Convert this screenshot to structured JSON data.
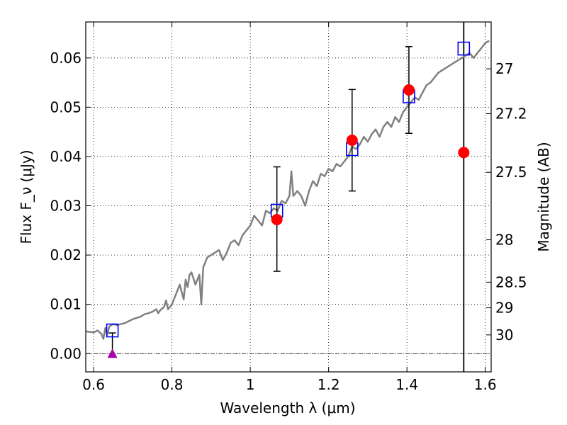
{
  "chart_data": {
    "type": "scatter",
    "xlabel": "Wavelength λ (μm)",
    "ylabel": "Flux F_ν (μJy)",
    "y2label": "Magnitude (AB)",
    "xlim": [
      0.58,
      1.615
    ],
    "ylim": [
      -0.0037,
      0.0673
    ],
    "grid": true,
    "x_ticks": [
      {
        "value": 0.6,
        "label": "0.6"
      },
      {
        "value": 0.8,
        "label": "0.8"
      },
      {
        "value": 1.0,
        "label": "1"
      },
      {
        "value": 1.2,
        "label": "1.2"
      },
      {
        "value": 1.4,
        "label": "1.4"
      },
      {
        "value": 1.6,
        "label": "1.6"
      }
    ],
    "y_ticks": [
      {
        "value": 0.0,
        "label": "0.00"
      },
      {
        "value": 0.01,
        "label": "0.01"
      },
      {
        "value": 0.02,
        "label": "0.02"
      },
      {
        "value": 0.03,
        "label": "0.03"
      },
      {
        "value": 0.04,
        "label": "0.04"
      },
      {
        "value": 0.05,
        "label": "0.05"
      },
      {
        "value": 0.06,
        "label": "0.06"
      }
    ],
    "y2_ticks": [
      {
        "flux": 0.0578,
        "label": "27"
      },
      {
        "flux": 0.0487,
        "label": "27.2"
      },
      {
        "flux": 0.0368,
        "label": "27.5"
      },
      {
        "flux": 0.0231,
        "label": "28"
      },
      {
        "flux": 0.0145,
        "label": "28.5"
      },
      {
        "flux": 0.0093,
        "label": "29"
      },
      {
        "flux": 0.0038,
        "label": "30"
      }
    ],
    "zero_line": 0.0,
    "vertical_line_x": 1.545,
    "model_spectrum": {
      "color": "#808080",
      "x": [
        0.58,
        0.6,
        0.61,
        0.62,
        0.625,
        0.63,
        0.635,
        0.64,
        0.65,
        0.66,
        0.68,
        0.7,
        0.72,
        0.73,
        0.74,
        0.75,
        0.76,
        0.765,
        0.77,
        0.78,
        0.785,
        0.79,
        0.8,
        0.81,
        0.82,
        0.83,
        0.835,
        0.84,
        0.845,
        0.85,
        0.86,
        0.87,
        0.875,
        0.88,
        0.89,
        0.9,
        0.91,
        0.92,
        0.93,
        0.94,
        0.95,
        0.96,
        0.97,
        0.98,
        0.99,
        1.0,
        1.01,
        1.02,
        1.03,
        1.04,
        1.05,
        1.06,
        1.07,
        1.08,
        1.09,
        1.1,
        1.105,
        1.11,
        1.12,
        1.13,
        1.14,
        1.15,
        1.16,
        1.17,
        1.18,
        1.19,
        1.2,
        1.21,
        1.22,
        1.23,
        1.24,
        1.25,
        1.26,
        1.27,
        1.28,
        1.29,
        1.3,
        1.31,
        1.32,
        1.33,
        1.34,
        1.35,
        1.36,
        1.37,
        1.38,
        1.39,
        1.4,
        1.41,
        1.42,
        1.43,
        1.44,
        1.45,
        1.46,
        1.47,
        1.48,
        1.49,
        1.5,
        1.51,
        1.52,
        1.53,
        1.54,
        1.55,
        1.56,
        1.57,
        1.58,
        1.59,
        1.6,
        1.61
      ],
      "y": [
        0.0045,
        0.0043,
        0.0047,
        0.004,
        0.003,
        0.0052,
        0.0038,
        0.0055,
        0.006,
        0.0058,
        0.0062,
        0.007,
        0.0075,
        0.008,
        0.0082,
        0.0085,
        0.009,
        0.0082,
        0.0088,
        0.0095,
        0.0108,
        0.009,
        0.01,
        0.012,
        0.014,
        0.011,
        0.015,
        0.0135,
        0.016,
        0.0165,
        0.014,
        0.016,
        0.01,
        0.0175,
        0.0195,
        0.02,
        0.0205,
        0.021,
        0.019,
        0.0205,
        0.0225,
        0.023,
        0.022,
        0.024,
        0.025,
        0.026,
        0.028,
        0.027,
        0.026,
        0.029,
        0.0285,
        0.0295,
        0.029,
        0.031,
        0.0305,
        0.032,
        0.037,
        0.032,
        0.033,
        0.032,
        0.03,
        0.033,
        0.035,
        0.034,
        0.0365,
        0.036,
        0.0375,
        0.037,
        0.0385,
        0.038,
        0.039,
        0.04,
        0.042,
        0.0415,
        0.0425,
        0.044,
        0.043,
        0.0445,
        0.0455,
        0.044,
        0.046,
        0.047,
        0.046,
        0.048,
        0.047,
        0.049,
        0.05,
        0.051,
        0.052,
        0.0515,
        0.053,
        0.0545,
        0.055,
        0.056,
        0.057,
        0.0575,
        0.058,
        0.0585,
        0.059,
        0.0595,
        0.06,
        0.0605,
        0.061,
        0.06,
        0.061,
        0.062,
        0.063,
        0.0635
      ]
    },
    "series": [
      {
        "marker": "circle",
        "color": "#ff0000",
        "points": [
          {
            "x": 1.068,
            "y": 0.0272,
            "ylow": 0.0167,
            "yhigh": 0.0379
          },
          {
            "x": 1.26,
            "y": 0.0433,
            "ylow": 0.033,
            "yhigh": 0.0536
          },
          {
            "x": 1.405,
            "y": 0.0535,
            "ylow": 0.0447,
            "yhigh": 0.0623
          },
          {
            "x": 1.545,
            "y": 0.0408
          }
        ]
      },
      {
        "marker": "square",
        "color": "#0000ff",
        "points": [
          {
            "x": 0.648,
            "y": 0.0047
          },
          {
            "x": 1.068,
            "y": 0.029
          },
          {
            "x": 1.26,
            "y": 0.0415
          },
          {
            "x": 1.405,
            "y": 0.0522
          },
          {
            "x": 1.545,
            "y": 0.0619
          }
        ]
      },
      {
        "marker": "triangle",
        "color": "#aa00aa",
        "points": [
          {
            "x": 0.648,
            "y": 0.0,
            "yhigh": 0.0042
          }
        ]
      }
    ]
  }
}
